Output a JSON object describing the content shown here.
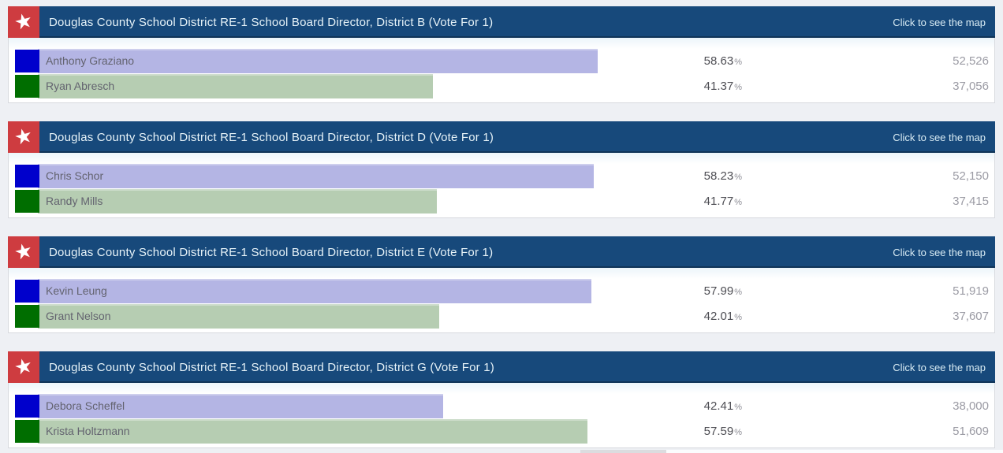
{
  "labels": {
    "map_link": "Click to see the map",
    "percent_sign": "%"
  },
  "colors": {
    "page_bg": "#eef0f4",
    "header_bg": "#17497b",
    "star_box_bg": "#ce3c40",
    "star": "#ffffff",
    "panel_bg": "#ffffff",
    "blue_swatch": "#0000cc",
    "green_swatch": "#006e00",
    "blue_bar": "#b4b5e4",
    "green_bar": "#b6cdb2"
  },
  "contests": [
    {
      "title": "Douglas County School District RE-1 School Board Director, District B (Vote For 1)",
      "candidates": [
        {
          "name": "Anthony Graziano",
          "percent": 58.63,
          "votes": "52,526",
          "swatch_color": "#0000cc",
          "bar_color": "#b4b5e4"
        },
        {
          "name": "Ryan Abresch",
          "percent": 41.37,
          "votes": "37,056",
          "swatch_color": "#006e00",
          "bar_color": "#b6cdb2"
        }
      ]
    },
    {
      "title": "Douglas County School District RE-1 School Board Director, District D (Vote For 1)",
      "candidates": [
        {
          "name": "Chris Schor",
          "percent": 58.23,
          "votes": "52,150",
          "swatch_color": "#0000cc",
          "bar_color": "#b4b5e4"
        },
        {
          "name": "Randy Mills",
          "percent": 41.77,
          "votes": "37,415",
          "swatch_color": "#006e00",
          "bar_color": "#b6cdb2"
        }
      ]
    },
    {
      "title": "Douglas County School District RE-1 School Board Director, District E (Vote For 1)",
      "candidates": [
        {
          "name": "Kevin Leung",
          "percent": 57.99,
          "votes": "51,919",
          "swatch_color": "#0000cc",
          "bar_color": "#b4b5e4"
        },
        {
          "name": "Grant Nelson",
          "percent": 42.01,
          "votes": "37,607",
          "swatch_color": "#006e00",
          "bar_color": "#b6cdb2"
        }
      ]
    },
    {
      "title": "Douglas County School District RE-1 School Board Director, District G (Vote For 1)",
      "candidates": [
        {
          "name": "Debora Scheffel",
          "percent": 42.41,
          "votes": "38,000",
          "swatch_color": "#0000cc",
          "bar_color": "#b4b5e4"
        },
        {
          "name": "Krista Holtzmann",
          "percent": 57.59,
          "votes": "51,609",
          "swatch_color": "#006e00",
          "bar_color": "#b6cdb2"
        }
      ]
    }
  ]
}
